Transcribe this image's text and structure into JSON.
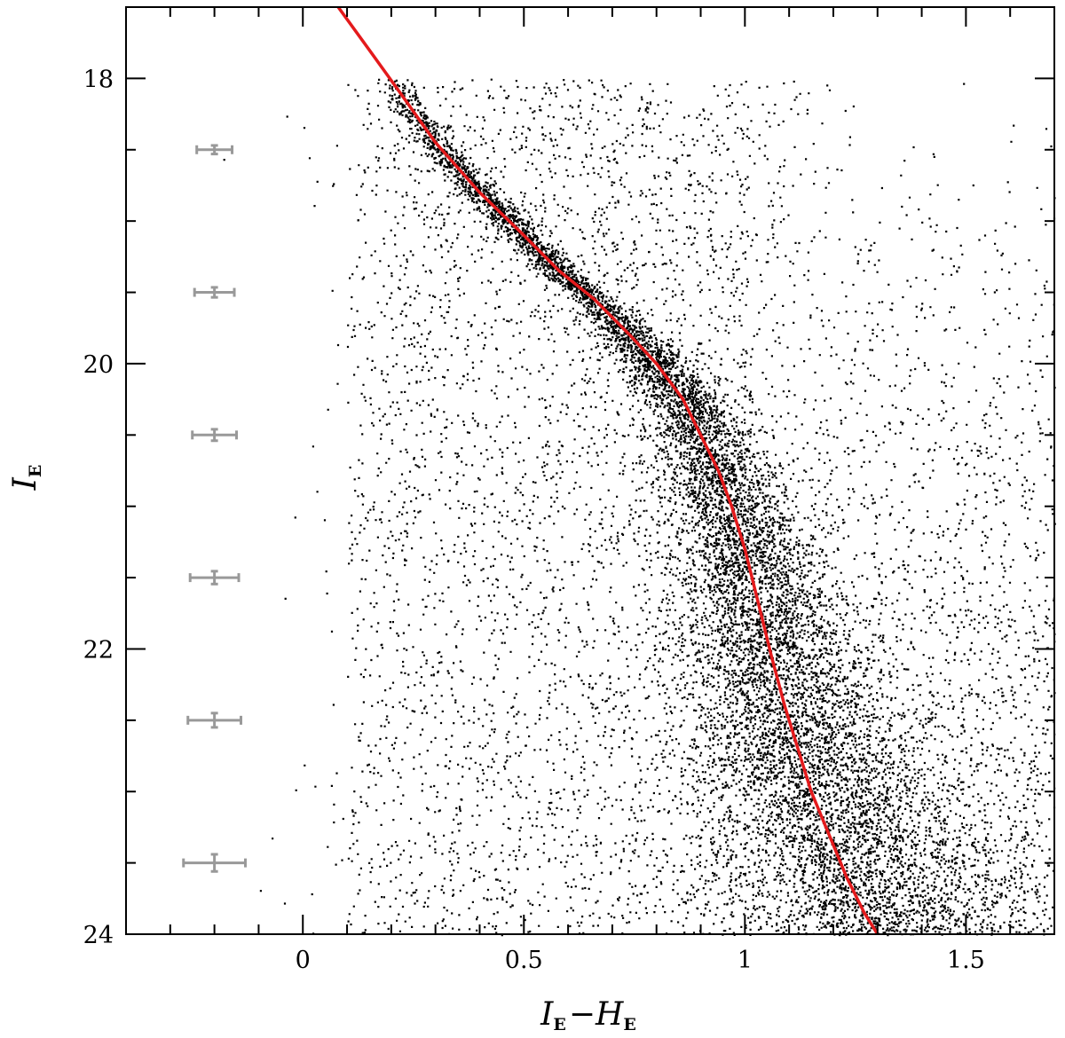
{
  "chart_data": {
    "type": "scatter",
    "title": "",
    "xlabel": {
      "base1": "I",
      "sub1": "E",
      "dash": "−",
      "base2": "H",
      "sub2": "E"
    },
    "ylabel": {
      "base": "I",
      "sub": "E"
    },
    "xlim": [
      -0.4,
      1.7
    ],
    "ylim": [
      24,
      17.5
    ],
    "y_inverted": true,
    "xticks": [
      0,
      0.5,
      1,
      1.5
    ],
    "xtick_labels": [
      "0",
      "0.5",
      "1",
      "1.5"
    ],
    "yticks": [
      18,
      20,
      22,
      24
    ],
    "ytick_labels": [
      "18",
      "20",
      "22",
      "24"
    ],
    "grid": false,
    "colors": {
      "points": "#000000",
      "isochrone": "#e41a1c",
      "error_bars": "#999999"
    },
    "isochrone": {
      "x": [
        0.08,
        0.15,
        0.22,
        0.3,
        0.4,
        0.5,
        0.58,
        0.66,
        0.74,
        0.8,
        0.86,
        0.9,
        0.94,
        0.97,
        1.0,
        1.02,
        1.04,
        1.06,
        1.09,
        1.12,
        1.15,
        1.19,
        1.23,
        1.27,
        1.3
      ],
      "y": [
        17.5,
        17.8,
        18.1,
        18.45,
        18.8,
        19.1,
        19.35,
        19.55,
        19.8,
        20.0,
        20.25,
        20.5,
        20.75,
        21.0,
        21.3,
        21.55,
        21.8,
        22.05,
        22.4,
        22.7,
        23.0,
        23.3,
        23.6,
        23.85,
        24.0
      ]
    },
    "error_bars": [
      {
        "x": -0.2,
        "y": 18.5,
        "xerr": 0.04,
        "yerr": 0.03
      },
      {
        "x": -0.2,
        "y": 19.5,
        "xerr": 0.045,
        "yerr": 0.035
      },
      {
        "x": -0.2,
        "y": 20.5,
        "xerr": 0.05,
        "yerr": 0.04
      },
      {
        "x": -0.2,
        "y": 21.5,
        "xerr": 0.055,
        "yerr": 0.045
      },
      {
        "x": -0.2,
        "y": 22.5,
        "xerr": 0.06,
        "yerr": 0.05
      },
      {
        "x": -0.2,
        "y": 23.5,
        "xerr": 0.07,
        "yerr": 0.06
      }
    ],
    "scatter_points": {
      "main_sequence_count": 9000,
      "field_count": 4000,
      "red_field_count": 3000
    }
  }
}
